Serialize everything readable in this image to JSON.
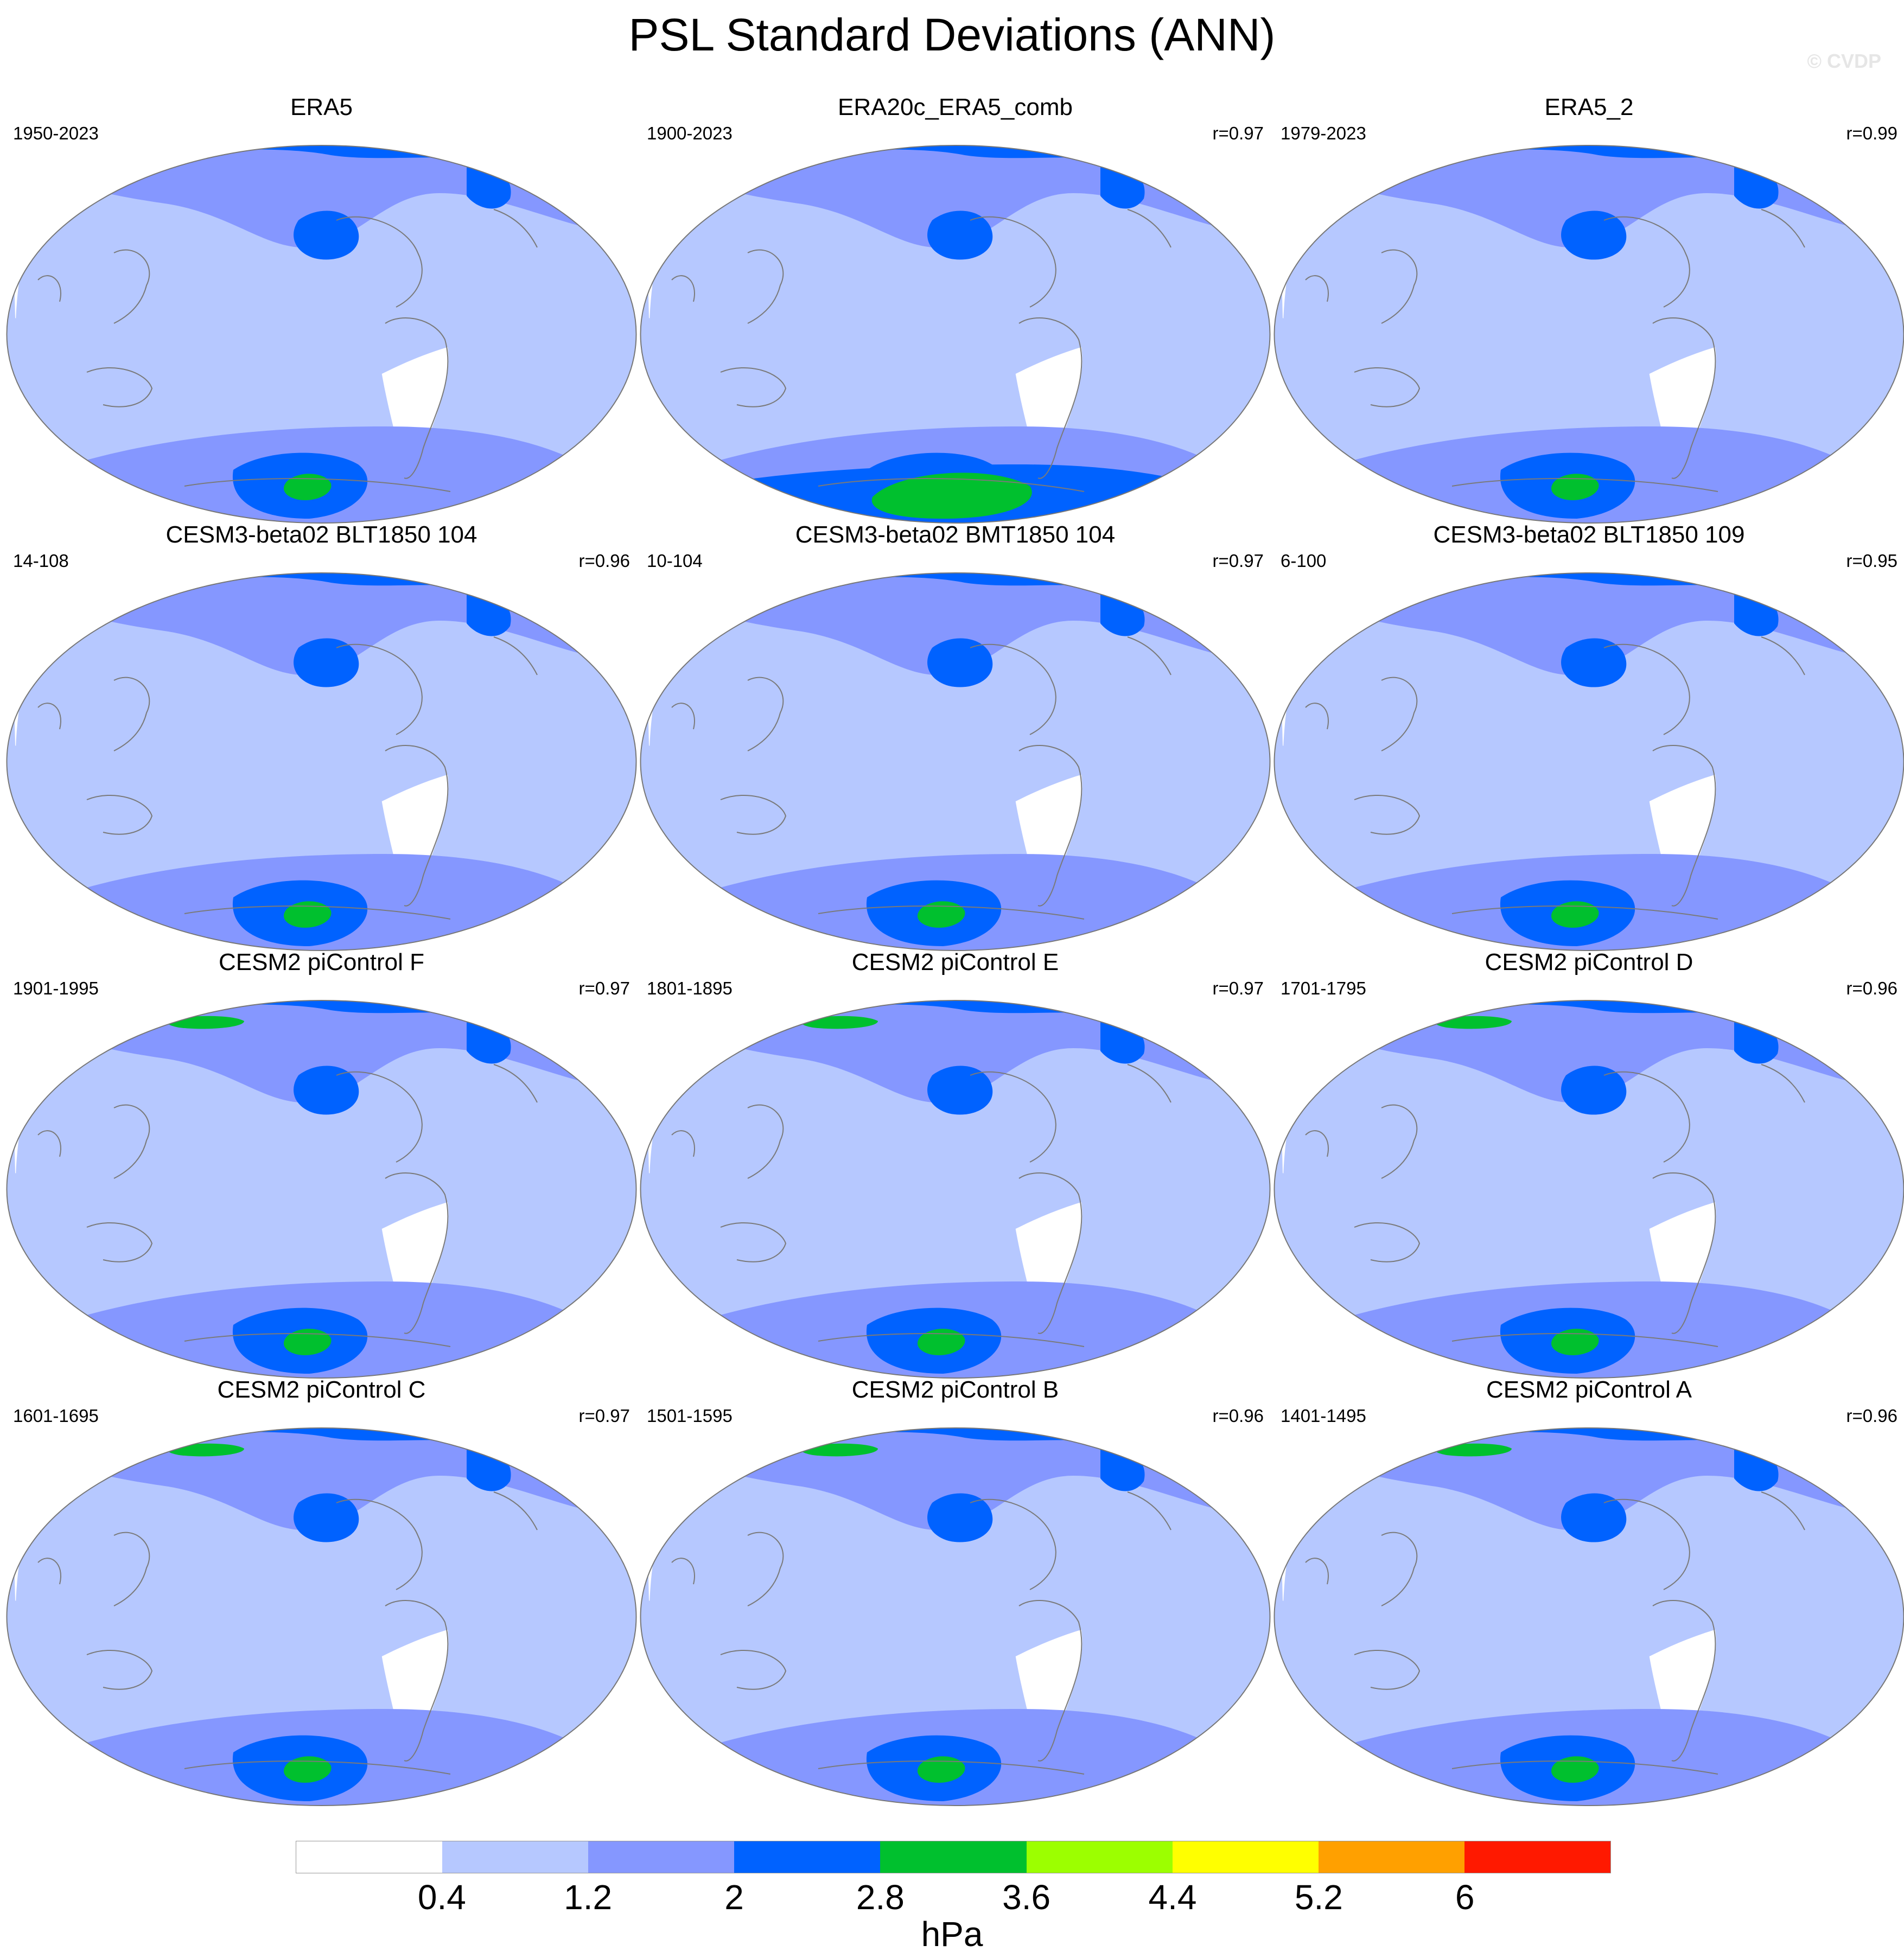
{
  "title": "PSL Standard Deviations (ANN)",
  "watermark": "© CVDP",
  "colors": {
    "levels": [
      "#ffffff",
      "#b6c8ff",
      "#8597ff",
      "#0062ff",
      "#00c02e",
      "#9cff00",
      "#ffff00",
      "#ffa000",
      "#ff1900"
    ],
    "coast": "#7a7a7a",
    "border": "#777777"
  },
  "panels": [
    {
      "title": "ERA5",
      "period": "1950-2023",
      "r": ""
    },
    {
      "title": "ERA20c_ERA5_comb",
      "period": "1900-2023",
      "r": "r=0.97"
    },
    {
      "title": "ERA5_2",
      "period": "1979-2023",
      "r": "r=0.99"
    },
    {
      "title": "CESM3-beta02 BLT1850 104",
      "period": "14-108",
      "r": "r=0.96"
    },
    {
      "title": "CESM3-beta02 BMT1850 104",
      "period": "10-104",
      "r": "r=0.97"
    },
    {
      "title": "CESM3-beta02 BLT1850 109",
      "period": "6-100",
      "r": "r=0.95"
    },
    {
      "title": "CESM2 piControl F",
      "period": "1901-1995",
      "r": "r=0.97"
    },
    {
      "title": "CESM2 piControl E",
      "period": "1801-1895",
      "r": "r=0.97"
    },
    {
      "title": "CESM2 piControl D",
      "period": "1701-1795",
      "r": "r=0.96"
    },
    {
      "title": "CESM2 piControl C",
      "period": "1601-1695",
      "r": "r=0.97"
    },
    {
      "title": "CESM2 piControl B",
      "period": "1501-1595",
      "r": "r=0.96"
    },
    {
      "title": "CESM2 piControl A",
      "period": "1401-1495",
      "r": "r=0.96"
    }
  ],
  "colorbar": {
    "labels": [
      "0.4",
      "1.2",
      "2",
      "2.8",
      "3.6",
      "4.4",
      "5.2",
      "6"
    ],
    "units": "hPa"
  }
}
